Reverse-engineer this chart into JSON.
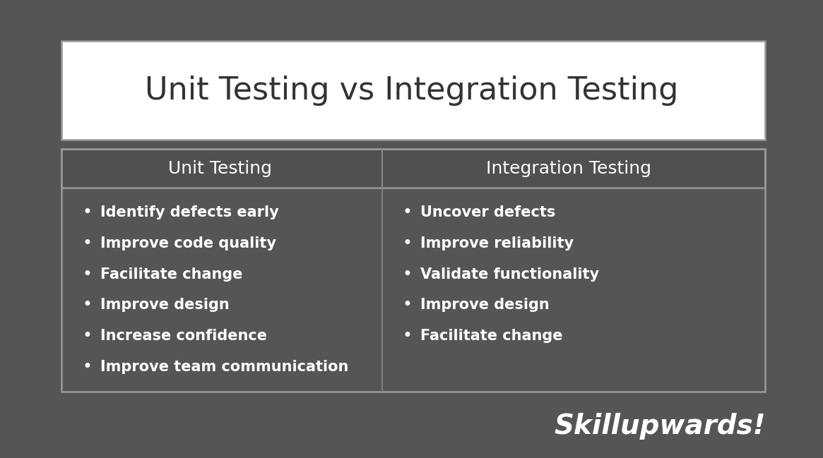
{
  "background_color": "#555555",
  "title_box_color": "#ffffff",
  "title_text": "Unit Testing vs Integration Testing",
  "title_color": "#333333",
  "title_fontsize": 32,
  "header_box_facecolor": "#505050",
  "header_border_color": "#999999",
  "header_text_color": "#ffffff",
  "header_fontsize": 18,
  "col1_header": "Unit Testing",
  "col2_header": "Integration Testing",
  "col1_items": [
    "Identify defects early",
    "Improve code quality",
    "Facilitate change",
    "Improve design",
    "Increase confidence",
    "Improve team communication"
  ],
  "col2_items": [
    "Uncover defects",
    "Improve reliability",
    "Validate functionality",
    "Improve design",
    "Facilitate change"
  ],
  "item_color": "#ffffff",
  "item_fontsize": 15,
  "bullet": "•",
  "divider_color": "#888888",
  "watermark_text": "Skillupwards!",
  "watermark_color": "#ffffff",
  "watermark_fontsize": 28,
  "outer_border_color": "#999999",
  "fig_width": 11.65,
  "fig_height": 6.49
}
